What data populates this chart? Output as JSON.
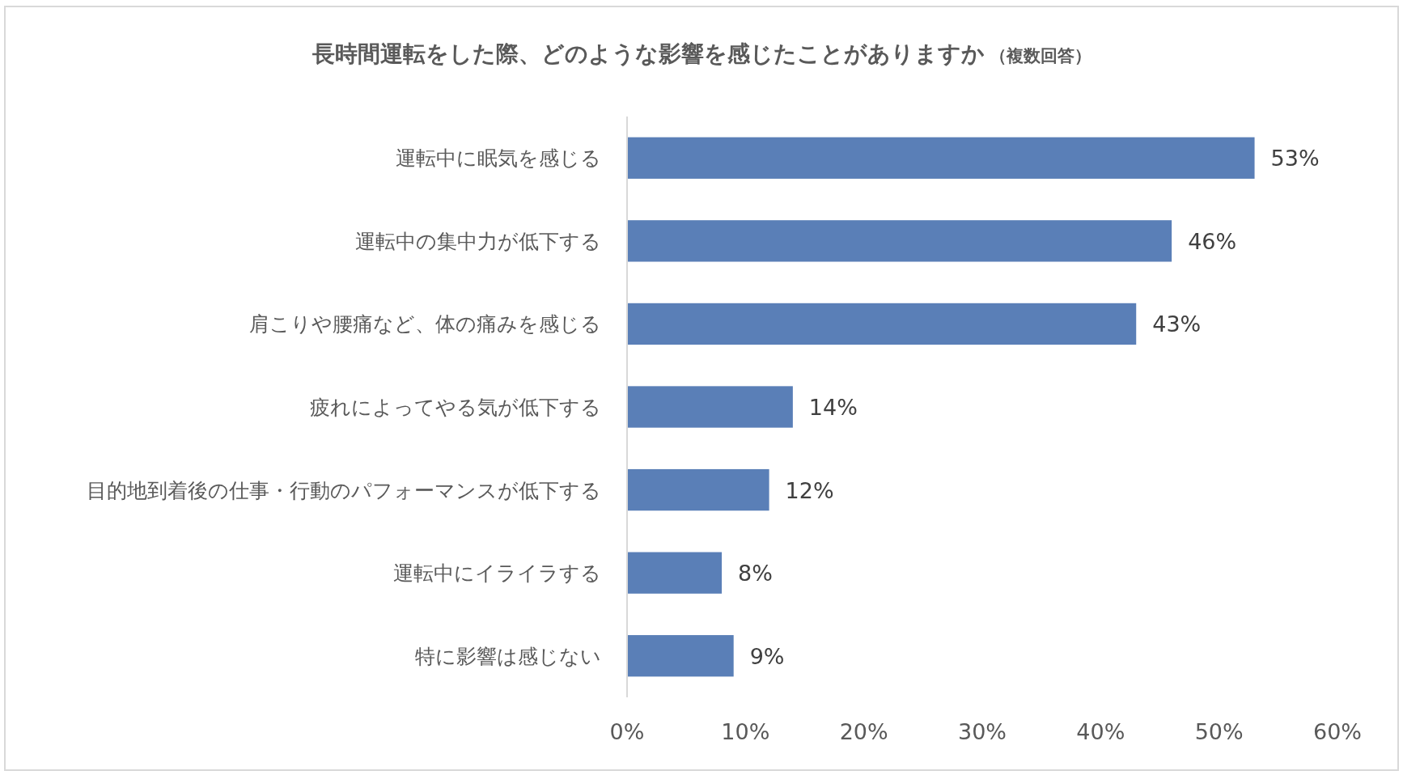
{
  "chart_data": {
    "type": "bar",
    "orientation": "horizontal",
    "title": "長時間運転をした際、どのような影響を感じたことがありますか",
    "subtitle": "（複数回答）",
    "categories": [
      "運転中に眠気を感じる",
      "運転中の集中力が低下する",
      "肩こりや腰痛など、体の痛みを感じる",
      "疲れによってやる気が低下する",
      "目的地到着後の仕事・行動のパフォーマンスが低下する",
      "運転中にイライラする",
      "特に影響は感じない"
    ],
    "values": [
      53,
      46,
      43,
      14,
      12,
      8,
      9
    ],
    "value_labels": [
      "53%",
      "46%",
      "43%",
      "14%",
      "12%",
      "8%",
      "9%"
    ],
    "color": "#5a7fb7",
    "xlim": [
      0,
      60
    ],
    "xticks": [
      {
        "value": 0,
        "label": "0%"
      },
      {
        "value": 10,
        "label": "10%"
      },
      {
        "value": 20,
        "label": "20%"
      },
      {
        "value": 30,
        "label": "30%"
      },
      {
        "value": 40,
        "label": "40%"
      },
      {
        "value": 50,
        "label": "50%"
      },
      {
        "value": 60,
        "label": "60%"
      }
    ]
  }
}
